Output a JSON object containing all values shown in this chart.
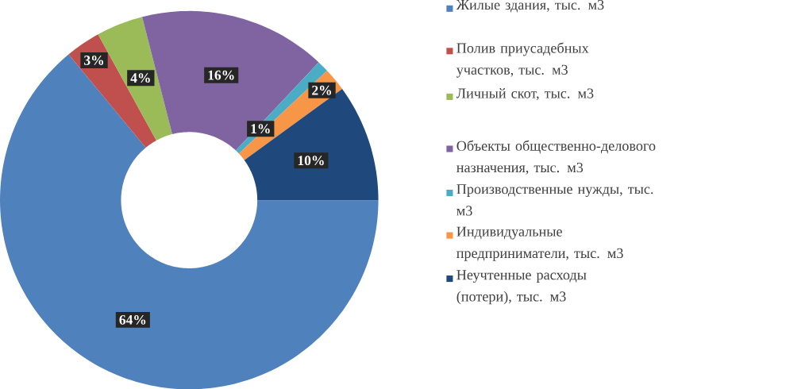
{
  "chart_data": {
    "type": "donut",
    "categories": [
      "Жилые здания, тыс. м3",
      "Полив приусадебных участков, тыс. м3",
      "Личный скот, тыс. м3",
      "Объекты общественно-делового назначения, тыс. м3",
      "Производственные нужды, тыс. м3",
      "Индивидуальные предприниматели, тыс. м3",
      "Неучтенные расходы (потери), тыс. м3"
    ],
    "values": [
      64,
      3,
      4,
      16,
      1,
      2,
      10
    ],
    "colors": [
      "#4f81bd",
      "#c0504d",
      "#9bbb59",
      "#8064a2",
      "#4bacc6",
      "#f79646",
      "#1f497d"
    ],
    "value_labels": [
      "64%",
      "3%",
      "4%",
      "16%",
      "1%",
      "2%",
      "10%"
    ],
    "legend": "right"
  }
}
